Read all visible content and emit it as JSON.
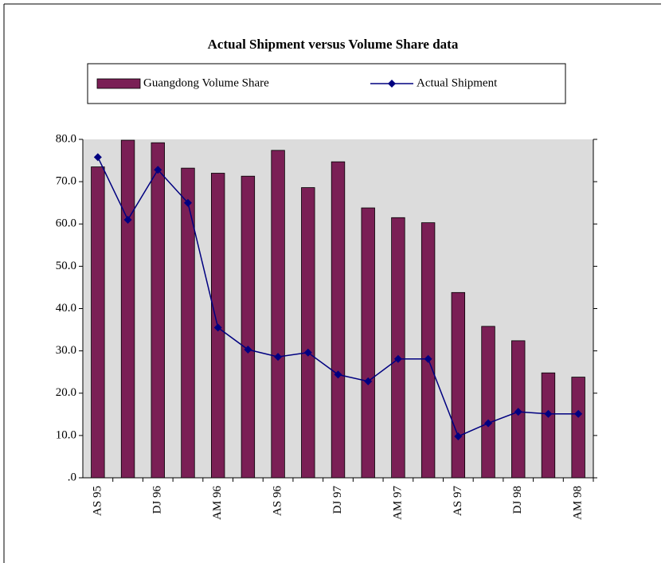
{
  "chart_data": {
    "type": "bar_line",
    "title": "Actual Shipment versus Volume Share data",
    "categories": [
      "AS 95",
      null,
      "DJ 96",
      null,
      "AM 96",
      null,
      "AS 96",
      null,
      "DJ 97",
      null,
      "AM 97",
      null,
      "AS 97",
      null,
      "DJ 98",
      null,
      "AM 98"
    ],
    "series": [
      {
        "name": "Guangdong Volume Share",
        "type": "bar",
        "color": "#7a1f55",
        "values": [
          73.5,
          79.8,
          79.2,
          73.2,
          72.0,
          71.3,
          77.4,
          68.6,
          74.7,
          63.8,
          61.5,
          60.3,
          43.8,
          35.8,
          32.4,
          24.8,
          23.8
        ]
      },
      {
        "name": "Actual Shipment",
        "type": "line",
        "color": "#000080",
        "values": [
          75.8,
          61.0,
          72.8,
          65.0,
          35.5,
          30.3,
          28.6,
          29.6,
          24.4,
          22.8,
          28.1,
          28.1,
          9.8,
          12.9,
          15.6,
          15.1,
          15.1
        ]
      }
    ],
    "ylim": [
      0,
      80
    ],
    "yticks": [
      {
        "value": 0,
        "label": ".0"
      },
      {
        "value": 10,
        "label": "10.0"
      },
      {
        "value": 20,
        "label": "20.0"
      },
      {
        "value": 30,
        "label": "30.0"
      },
      {
        "value": 40,
        "label": "40.0"
      },
      {
        "value": 50,
        "label": "50.0"
      },
      {
        "value": 60,
        "label": "60.0"
      },
      {
        "value": 70,
        "label": "70.0"
      },
      {
        "value": 80,
        "label": "80.0"
      }
    ],
    "legend": "top"
  }
}
